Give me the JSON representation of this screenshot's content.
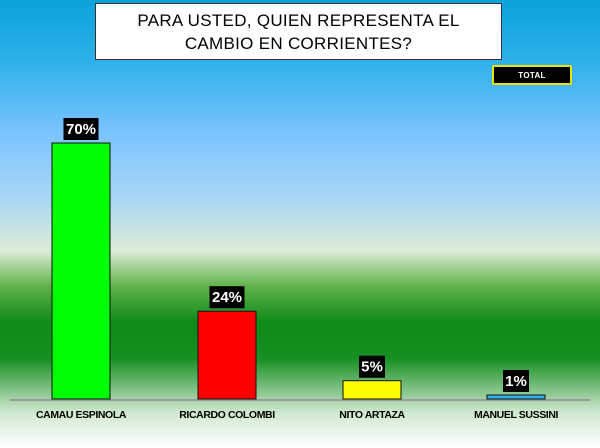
{
  "title": "PARA USTED, QUIEN REPRESENTA EL CAMBIO EN CORRIENTES?",
  "legend": {
    "label": "TOTAL"
  },
  "colors": {
    "bar_1": "#00ff00",
    "bar_2": "#ff0000",
    "bar_3": "#ffff00",
    "bar_4": "#2eb3ea",
    "value_label_bg": "#000000",
    "legend_border": "#e6e600"
  },
  "chart_data": {
    "type": "bar",
    "title": "PARA USTED, QUIEN REPRESENTA EL CAMBIO EN CORRIENTES?",
    "categories": [
      "CAMAU ESPINOLA",
      "RICARDO COLOMBI",
      "NITO ARTAZA",
      "MANUEL SUSSINI"
    ],
    "series": [
      {
        "name": "TOTAL",
        "values": [
          70,
          24,
          5,
          1
        ]
      }
    ],
    "value_labels": [
      "70%",
      "24%",
      "5%",
      "1%"
    ],
    "ylim": [
      0,
      100
    ],
    "grid": false,
    "legend_position": "top-right"
  }
}
